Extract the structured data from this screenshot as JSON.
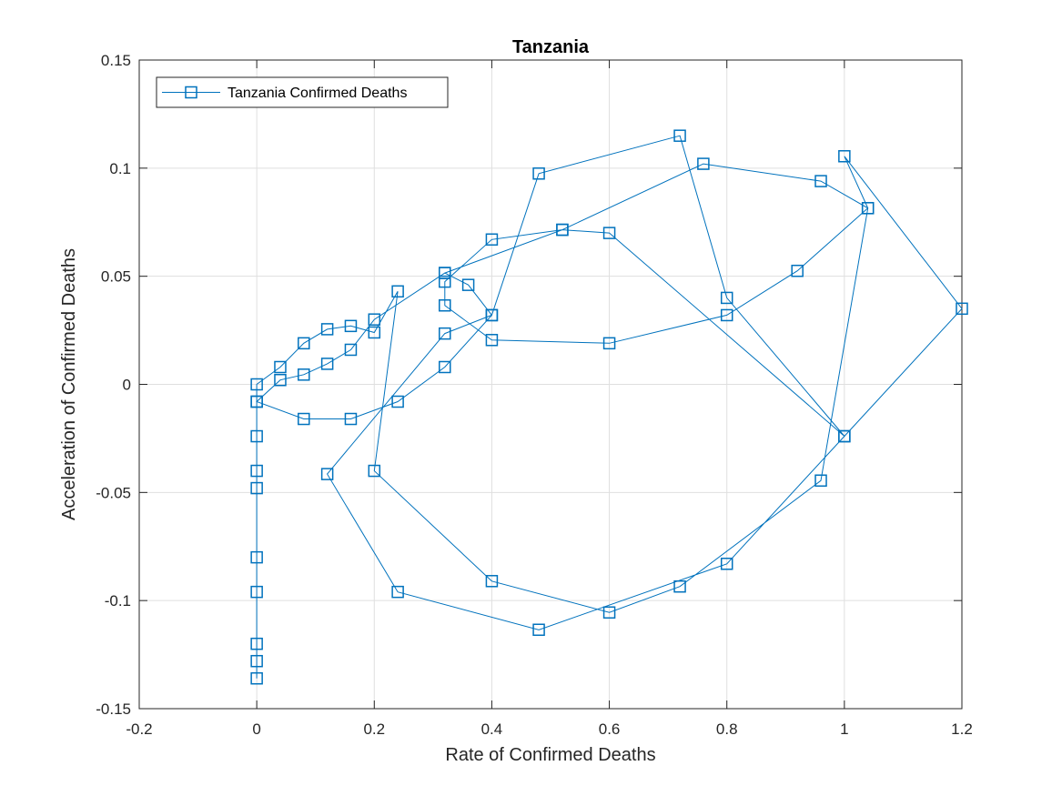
{
  "chart_data": {
    "type": "line",
    "title": "Tanzania",
    "xlabel": "Rate of Confirmed Deaths",
    "ylabel": "Acceleration of Confirmed Deaths",
    "xlim": [
      -0.2,
      1.2
    ],
    "ylim": [
      -0.15,
      0.15
    ],
    "grid": true,
    "legend_placement": "top-left",
    "marker": "square",
    "xticks": [
      -0.2,
      0,
      0.2,
      0.4,
      0.6,
      0.8,
      1,
      1.2
    ],
    "xtick_labels": [
      "-0.2",
      "0",
      "0.2",
      "0.4",
      "0.6",
      "0.8",
      "1",
      "1.2"
    ],
    "yticks": [
      -0.15,
      -0.1,
      -0.05,
      0,
      0.05,
      0.1,
      0.15
    ],
    "ytick_labels": [
      "-0.15",
      "-0.1",
      "-0.05",
      "0",
      "0.05",
      "0.1",
      "0.15"
    ],
    "series": [
      {
        "name": "Tanzania Confirmed Deaths",
        "color": "#0072BD",
        "points": [
          [
            0,
            -0.136
          ],
          [
            0,
            -0.128
          ],
          [
            0,
            -0.12
          ],
          [
            0,
            -0.096
          ],
          [
            0,
            -0.08
          ],
          [
            0,
            -0.048
          ],
          [
            0,
            -0.04
          ],
          [
            0,
            -0.024
          ],
          [
            0,
            -0.008
          ],
          [
            0,
            0
          ],
          [
            0.04,
            0.008
          ],
          [
            0.08,
            0.019
          ],
          [
            0.12,
            0.0255
          ],
          [
            0.16,
            0.027
          ],
          [
            0.2,
            0.024
          ],
          [
            0.24,
            0.043
          ],
          [
            0.2,
            -0.04
          ],
          [
            0.4,
            -0.091
          ],
          [
            0.6,
            -0.1055
          ],
          [
            0.72,
            -0.0935
          ],
          [
            0.96,
            -0.0445
          ],
          [
            1.04,
            0.0815
          ],
          [
            0.96,
            0.094
          ],
          [
            0.76,
            0.102
          ],
          [
            0.52,
            0.0715
          ],
          [
            0.4,
            0.067
          ],
          [
            0.32,
            0.0475
          ],
          [
            0.32,
            0.0365
          ],
          [
            0.4,
            0.0205
          ],
          [
            0.6,
            0.019
          ],
          [
            0.8,
            0.032
          ],
          [
            0.92,
            0.0525
          ],
          [
            1.04,
            0.0815
          ],
          [
            1.0,
            0.1055
          ],
          [
            1.2,
            0.035
          ],
          [
            1.0,
            -0.024
          ],
          [
            0.8,
            -0.083
          ],
          [
            0.48,
            -0.1135
          ],
          [
            0.24,
            -0.096
          ],
          [
            0.12,
            -0.0415
          ],
          [
            0.32,
            0.0235
          ],
          [
            0.4,
            0.032
          ],
          [
            0.32,
            0.008
          ],
          [
            0.24,
            -0.008
          ],
          [
            0.16,
            -0.016
          ],
          [
            0.08,
            -0.016
          ],
          [
            0,
            -0.008
          ],
          [
            0.04,
            0.002
          ],
          [
            0.08,
            0.0045
          ],
          [
            0.12,
            0.0095
          ],
          [
            0.16,
            0.016
          ],
          [
            0.2,
            0.03
          ],
          [
            0.32,
            0.0515
          ],
          [
            0.36,
            0.046
          ],
          [
            0.4,
            0.032
          ],
          [
            0.48,
            0.0975
          ],
          [
            0.72,
            0.115
          ],
          [
            0.8,
            0.04
          ],
          [
            1.0,
            -0.024
          ],
          [
            0.6,
            0.07
          ],
          [
            0.52,
            0.0715
          ],
          [
            0.32,
            0.0515
          ]
        ]
      }
    ]
  }
}
